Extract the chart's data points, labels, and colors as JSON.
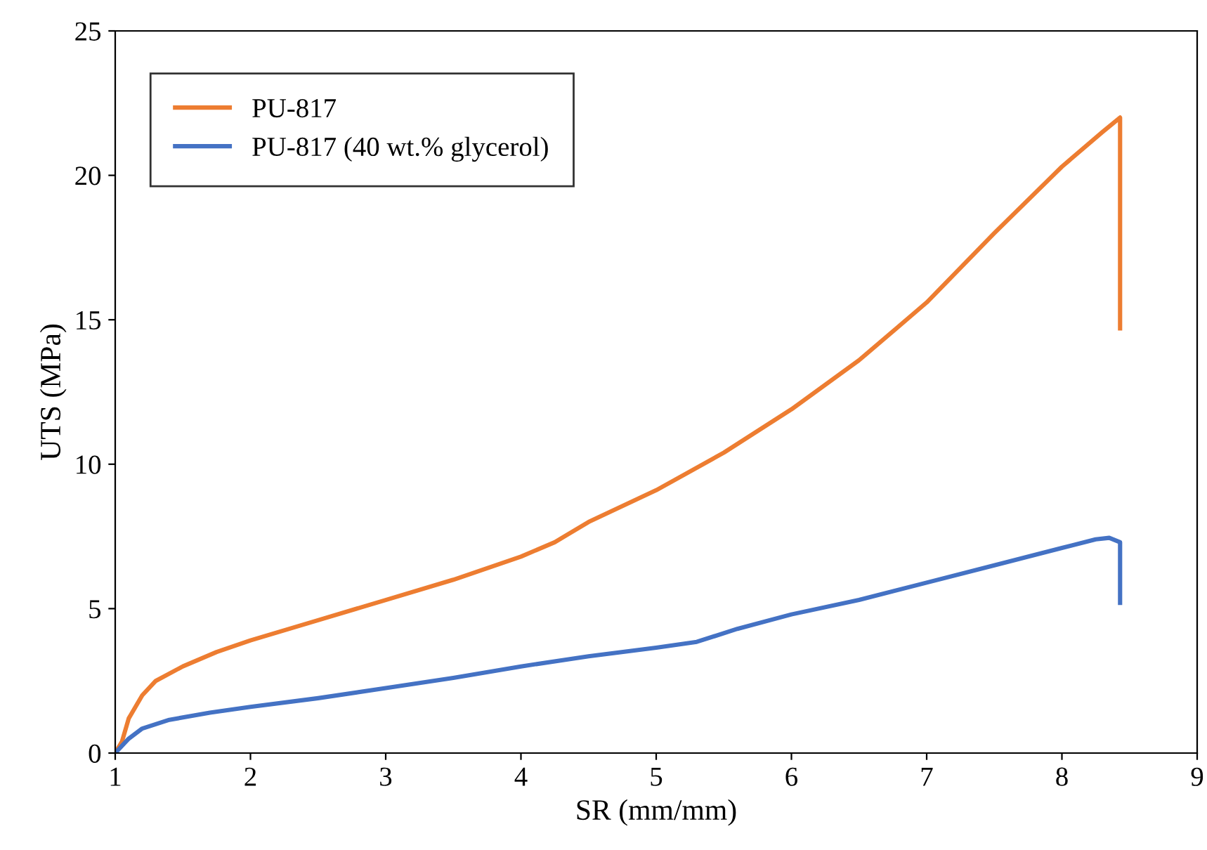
{
  "chart_data": {
    "type": "line",
    "xlabel": "SR (mm/mm)",
    "ylabel": "UTS (MPa)",
    "xlim": [
      1,
      9
    ],
    "ylim": [
      0,
      25
    ],
    "xticks": [
      1,
      2,
      3,
      4,
      5,
      6,
      7,
      8,
      9
    ],
    "yticks": [
      0,
      5,
      10,
      15,
      20,
      25
    ],
    "grid": false,
    "legend": "top left",
    "marker": "none",
    "line_style": "solid",
    "series": [
      {
        "name": "PU-817",
        "color": "#ed7d31",
        "x": [
          1,
          1.05,
          1.1,
          1.2,
          1.3,
          1.5,
          1.75,
          2,
          2.5,
          3,
          3.5,
          4,
          4.25,
          4.5,
          5,
          5.5,
          6,
          6.5,
          7,
          7.5,
          8,
          8.3,
          8.43,
          8.43
        ],
        "values": [
          0,
          0.4,
          1.2,
          2.0,
          2.5,
          3.0,
          3.5,
          3.9,
          4.6,
          5.3,
          6.0,
          6.8,
          7.3,
          8.0,
          9.1,
          10.4,
          11.9,
          13.6,
          15.6,
          18.0,
          20.3,
          21.5,
          22.0,
          14.7
        ]
      },
      {
        "name": "PU-817 (40 wt.% glycerol)",
        "color": "#4472c4",
        "x": [
          1,
          1.1,
          1.2,
          1.4,
          1.7,
          2,
          2.5,
          3,
          3.5,
          4,
          4.5,
          5,
          5.3,
          5.6,
          6,
          6.5,
          7,
          7.5,
          8,
          8.25,
          8.35,
          8.43,
          8.43
        ],
        "values": [
          0,
          0.5,
          0.85,
          1.15,
          1.4,
          1.6,
          1.9,
          2.25,
          2.6,
          3.0,
          3.35,
          3.65,
          3.85,
          4.3,
          4.8,
          5.3,
          5.9,
          6.5,
          7.1,
          7.4,
          7.45,
          7.3,
          5.2
        ]
      }
    ]
  }
}
